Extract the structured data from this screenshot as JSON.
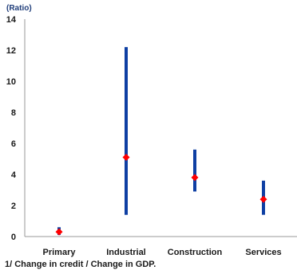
{
  "header_fragment": "",
  "chart_data": {
    "type": "range",
    "unit_label": "(Ratio)",
    "categories": [
      "Primary",
      "Industrial",
      "Construction",
      "Services"
    ],
    "low": [
      0.1,
      1.4,
      2.9,
      1.4
    ],
    "high": [
      0.6,
      12.2,
      5.6,
      3.6
    ],
    "point": [
      0.3,
      5.1,
      3.8,
      2.4
    ],
    "ylim": [
      0,
      14
    ],
    "yticks": [
      0,
      2,
      4,
      6,
      8,
      10,
      12,
      14
    ],
    "grid": false,
    "colors": {
      "range": "#0e3fa3",
      "point": "#ff0000",
      "axis": "#9a9a9a"
    }
  },
  "footnote": "1/ Change in credit / Change in GDP."
}
